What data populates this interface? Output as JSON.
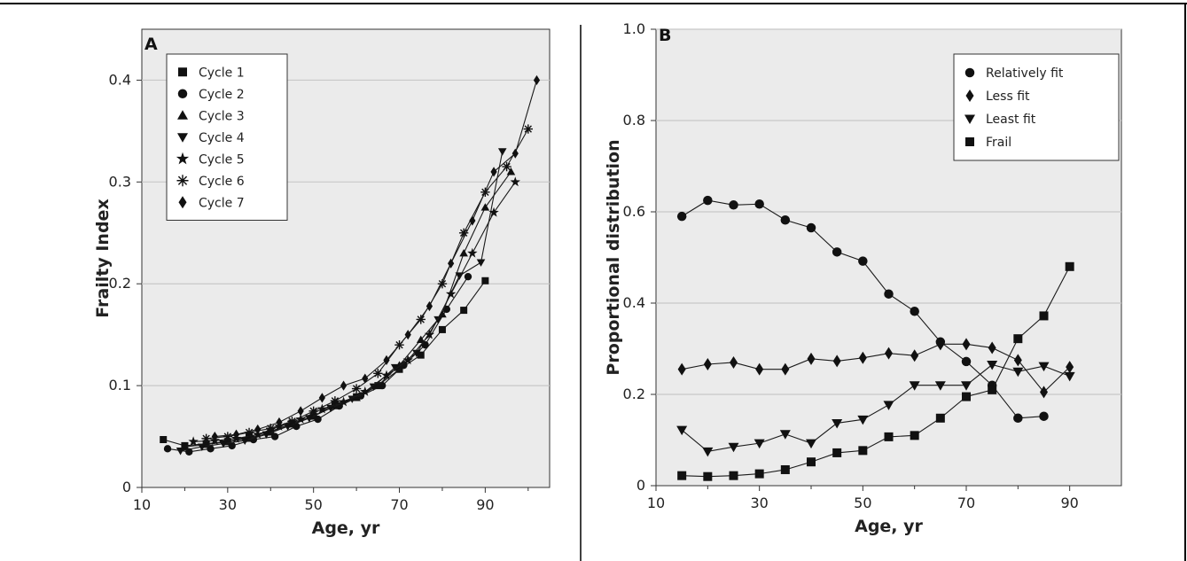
{
  "chart_data": [
    {
      "type": "line",
      "panel_label": "A",
      "title": "",
      "xlabel": "Age, yr",
      "ylabel": "Frailty Index",
      "xlim": [
        10,
        105
      ],
      "ylim": [
        0,
        0.45
      ],
      "xticks": [
        10,
        30,
        50,
        70,
        90
      ],
      "yticks": [
        0,
        0.1,
        0.2,
        0.3,
        0.4
      ],
      "ytick_labels": [
        "0",
        "0.1",
        "0.2",
        "0.3",
        "0.4"
      ],
      "grid": "horizontal",
      "legend_placement": "top-left",
      "background": "#ebebeb",
      "series": [
        {
          "name": "Cycle 1",
          "marker": "square",
          "x": [
            15,
            20,
            25,
            30,
            35,
            40,
            45,
            50,
            55,
            60,
            65,
            70,
            75,
            80,
            85,
            90
          ],
          "y": [
            0.047,
            0.041,
            0.043,
            0.045,
            0.05,
            0.055,
            0.063,
            0.07,
            0.082,
            0.089,
            0.1,
            0.116,
            0.13,
            0.155,
            0.174,
            0.203
          ]
        },
        {
          "name": "Cycle 2",
          "marker": "circle",
          "x": [
            16,
            21,
            26,
            31,
            36,
            41,
            46,
            51,
            56,
            61,
            66,
            71,
            76,
            81,
            86
          ],
          "y": [
            0.038,
            0.035,
            0.038,
            0.041,
            0.047,
            0.05,
            0.06,
            0.067,
            0.08,
            0.09,
            0.1,
            0.12,
            0.14,
            0.175,
            0.207
          ]
        },
        {
          "name": "Cycle 3",
          "marker": "triangle-up",
          "x": [
            20,
            25,
            30,
            35,
            40,
            45,
            50,
            55,
            60,
            65,
            70,
            75,
            80,
            85,
            90,
            96
          ],
          "y": [
            0.04,
            0.042,
            0.045,
            0.048,
            0.054,
            0.062,
            0.07,
            0.08,
            0.088,
            0.1,
            0.12,
            0.145,
            0.17,
            0.23,
            0.275,
            0.31
          ]
        },
        {
          "name": "Cycle 4",
          "marker": "triangle-down",
          "x": [
            19,
            24,
            29,
            34,
            39,
            44,
            49,
            54,
            59,
            64,
            69,
            74,
            79,
            84,
            89,
            94
          ],
          "y": [
            0.036,
            0.04,
            0.043,
            0.046,
            0.052,
            0.06,
            0.068,
            0.078,
            0.087,
            0.099,
            0.118,
            0.132,
            0.165,
            0.208,
            0.221,
            0.33
          ]
        },
        {
          "name": "Cycle 5",
          "marker": "star",
          "x": [
            22,
            27,
            32,
            37,
            42,
            47,
            52,
            57,
            62,
            67,
            72,
            77,
            82,
            87,
            92,
            97
          ],
          "y": [
            0.045,
            0.046,
            0.048,
            0.052,
            0.06,
            0.067,
            0.077,
            0.084,
            0.094,
            0.11,
            0.125,
            0.15,
            0.19,
            0.23,
            0.27,
            0.3
          ]
        },
        {
          "name": "Cycle 6",
          "marker": "asterisk",
          "x": [
            25,
            30,
            35,
            40,
            45,
            50,
            55,
            60,
            65,
            70,
            75,
            80,
            85,
            90,
            95,
            100
          ],
          "y": [
            0.048,
            0.05,
            0.054,
            0.058,
            0.065,
            0.075,
            0.085,
            0.097,
            0.112,
            0.14,
            0.165,
            0.2,
            0.25,
            0.29,
            0.315,
            0.352
          ]
        },
        {
          "name": "Cycle 7",
          "marker": "diamond",
          "x": [
            27,
            32,
            37,
            42,
            47,
            52,
            57,
            62,
            67,
            72,
            77,
            82,
            87,
            92,
            97,
            102
          ],
          "y": [
            0.05,
            0.052,
            0.057,
            0.064,
            0.075,
            0.088,
            0.1,
            0.107,
            0.125,
            0.15,
            0.178,
            0.22,
            0.262,
            0.31,
            0.328,
            0.4
          ]
        }
      ]
    },
    {
      "type": "line",
      "panel_label": "B",
      "title": "",
      "xlabel": "Age, yr",
      "ylabel": "Proportional distribution",
      "xlim": [
        10,
        100
      ],
      "ylim": [
        0,
        1.0
      ],
      "xticks": [
        10,
        30,
        50,
        70,
        90
      ],
      "yticks": [
        0,
        0.2,
        0.4,
        0.6,
        0.8,
        1.0
      ],
      "ytick_labels": [
        "0",
        "0.2",
        "0.4",
        "0.6",
        "0.8",
        "1.0"
      ],
      "grid": "horizontal",
      "legend_placement": "top-right",
      "background": "#ebebeb",
      "series": [
        {
          "name": "Relatively fit",
          "marker": "circle",
          "x": [
            15,
            20,
            25,
            30,
            35,
            40,
            45,
            50,
            55,
            60,
            65,
            70,
            75,
            80,
            85
          ],
          "y": [
            0.59,
            0.625,
            0.615,
            0.617,
            0.582,
            0.565,
            0.512,
            0.492,
            0.42,
            0.382,
            0.315,
            0.272,
            0.22,
            0.148,
            0.152
          ]
        },
        {
          "name": "Less fit",
          "marker": "diamond",
          "x": [
            15,
            20,
            25,
            30,
            35,
            40,
            45,
            50,
            55,
            60,
            65,
            70,
            75,
            80,
            85,
            90
          ],
          "y": [
            0.255,
            0.266,
            0.27,
            0.255,
            0.255,
            0.278,
            0.273,
            0.28,
            0.29,
            0.285,
            0.31,
            0.31,
            0.302,
            0.275,
            0.205,
            0.26
          ]
        },
        {
          "name": "Least fit",
          "marker": "triangle-down",
          "x": [
            15,
            20,
            25,
            30,
            35,
            40,
            45,
            50,
            55,
            60,
            65,
            70,
            75,
            80,
            85,
            90
          ],
          "y": [
            0.122,
            0.075,
            0.085,
            0.093,
            0.113,
            0.093,
            0.137,
            0.145,
            0.177,
            0.22,
            0.22,
            0.22,
            0.265,
            0.25,
            0.262,
            0.24
          ]
        },
        {
          "name": "Frail",
          "marker": "square",
          "x": [
            15,
            20,
            25,
            30,
            35,
            40,
            45,
            50,
            55,
            60,
            65,
            70,
            75,
            80,
            85,
            90
          ],
          "y": [
            0.022,
            0.02,
            0.022,
            0.026,
            0.035,
            0.052,
            0.072,
            0.077,
            0.107,
            0.11,
            0.148,
            0.195,
            0.21,
            0.322,
            0.372,
            0.48
          ]
        }
      ]
    }
  ]
}
